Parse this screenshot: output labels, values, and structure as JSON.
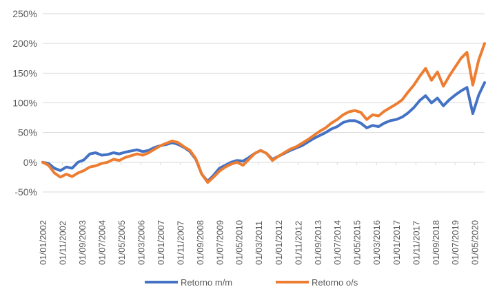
{
  "chart_data": {
    "type": "line",
    "title": "",
    "xlabel": "",
    "ylabel": "",
    "ylim": [
      -50,
      250
    ],
    "y_ticks": [
      "-50%",
      "0%",
      "50%",
      "100%",
      "150%",
      "200%",
      "250%"
    ],
    "y_tick_values": [
      -50,
      0,
      50,
      100,
      150,
      200,
      250
    ],
    "y_unit": "%",
    "x_tick_labels": [
      "01/01/2002",
      "01/11/2002",
      "01/09/2003",
      "01/07/2004",
      "01/05/2005",
      "01/03/2006",
      "01/01/2007",
      "01/11/2007",
      "01/09/2008",
      "01/07/2009",
      "01/05/2010",
      "01/03/2011",
      "01/01/2012",
      "01/11/2012",
      "01/09/2013",
      "01/07/2014",
      "01/05/2015",
      "01/03/2016",
      "01/01/2017",
      "01/11/2017",
      "01/09/2018",
      "01/07/2019",
      "01/05/2020"
    ],
    "x_range": [
      "01/01/2002",
      "01/10/2020"
    ],
    "grid": "horizontal",
    "legend_position": "bottom",
    "series": [
      {
        "name": "Retorno m/m",
        "color": "#4472C4",
        "points": [
          [
            "01/01/2002",
            0
          ],
          [
            "01/04/2002",
            -2
          ],
          [
            "01/07/2002",
            -10
          ],
          [
            "01/10/2002",
            -14
          ],
          [
            "01/01/2003",
            -8
          ],
          [
            "01/04/2003",
            -10
          ],
          [
            "01/07/2003",
            0
          ],
          [
            "01/10/2003",
            4
          ],
          [
            "01/01/2004",
            14
          ],
          [
            "01/04/2004",
            16
          ],
          [
            "01/07/2004",
            12
          ],
          [
            "01/10/2004",
            13
          ],
          [
            "01/01/2005",
            16
          ],
          [
            "01/04/2005",
            14
          ],
          [
            "01/07/2005",
            17
          ],
          [
            "01/10/2005",
            19
          ],
          [
            "01/01/2006",
            21
          ],
          [
            "01/04/2006",
            18
          ],
          [
            "01/07/2006",
            20
          ],
          [
            "01/10/2006",
            25
          ],
          [
            "01/01/2007",
            28
          ],
          [
            "01/04/2007",
            30
          ],
          [
            "01/07/2007",
            33
          ],
          [
            "01/10/2007",
            30
          ],
          [
            "01/01/2008",
            25
          ],
          [
            "01/04/2008",
            18
          ],
          [
            "01/07/2008",
            5
          ],
          [
            "01/10/2008",
            -20
          ],
          [
            "01/01/2009",
            -32
          ],
          [
            "01/04/2009",
            -22
          ],
          [
            "01/07/2009",
            -10
          ],
          [
            "01/10/2009",
            -5
          ],
          [
            "01/01/2010",
            0
          ],
          [
            "01/04/2010",
            3
          ],
          [
            "01/07/2010",
            2
          ],
          [
            "01/10/2010",
            8
          ],
          [
            "01/01/2011",
            15
          ],
          [
            "01/04/2011",
            20
          ],
          [
            "01/07/2011",
            15
          ],
          [
            "01/10/2011",
            5
          ],
          [
            "01/01/2012",
            10
          ],
          [
            "01/04/2012",
            15
          ],
          [
            "01/07/2012",
            20
          ],
          [
            "01/10/2012",
            24
          ],
          [
            "01/01/2013",
            28
          ],
          [
            "01/04/2013",
            34
          ],
          [
            "01/07/2013",
            40
          ],
          [
            "01/10/2013",
            45
          ],
          [
            "01/01/2014",
            50
          ],
          [
            "01/04/2014",
            56
          ],
          [
            "01/07/2014",
            60
          ],
          [
            "01/10/2014",
            67
          ],
          [
            "01/01/2015",
            70
          ],
          [
            "01/04/2015",
            70
          ],
          [
            "01/07/2015",
            66
          ],
          [
            "01/10/2015",
            58
          ],
          [
            "01/01/2016",
            62
          ],
          [
            "01/04/2016",
            60
          ],
          [
            "01/07/2016",
            66
          ],
          [
            "01/10/2016",
            70
          ],
          [
            "01/01/2017",
            72
          ],
          [
            "01/04/2017",
            76
          ],
          [
            "01/07/2017",
            83
          ],
          [
            "01/10/2017",
            92
          ],
          [
            "01/01/2018",
            104
          ],
          [
            "01/04/2018",
            112
          ],
          [
            "01/07/2018",
            100
          ],
          [
            "01/10/2018",
            108
          ],
          [
            "01/01/2019",
            95
          ],
          [
            "01/04/2019",
            105
          ],
          [
            "01/07/2019",
            113
          ],
          [
            "01/10/2019",
            120
          ],
          [
            "01/01/2020",
            126
          ],
          [
            "01/04/2020",
            82
          ],
          [
            "01/07/2020",
            113
          ],
          [
            "01/10/2020",
            134
          ]
        ]
      },
      {
        "name": "Retorno o/s",
        "color": "#ED7D31",
        "points": [
          [
            "01/01/2002",
            0
          ],
          [
            "01/04/2002",
            -5
          ],
          [
            "01/07/2002",
            -18
          ],
          [
            "01/10/2002",
            -25
          ],
          [
            "01/01/2003",
            -20
          ],
          [
            "01/04/2003",
            -24
          ],
          [
            "01/07/2003",
            -18
          ],
          [
            "01/10/2003",
            -14
          ],
          [
            "01/01/2004",
            -8
          ],
          [
            "01/04/2004",
            -6
          ],
          [
            "01/07/2004",
            -2
          ],
          [
            "01/10/2004",
            0
          ],
          [
            "01/01/2005",
            5
          ],
          [
            "01/04/2005",
            3
          ],
          [
            "01/07/2005",
            8
          ],
          [
            "01/10/2005",
            11
          ],
          [
            "01/01/2006",
            14
          ],
          [
            "01/04/2006",
            12
          ],
          [
            "01/07/2006",
            16
          ],
          [
            "01/10/2006",
            22
          ],
          [
            "01/01/2007",
            28
          ],
          [
            "01/04/2007",
            32
          ],
          [
            "01/07/2007",
            36
          ],
          [
            "01/10/2007",
            33
          ],
          [
            "01/01/2008",
            26
          ],
          [
            "01/04/2008",
            20
          ],
          [
            "01/07/2008",
            6
          ],
          [
            "01/10/2008",
            -20
          ],
          [
            "01/01/2009",
            -34
          ],
          [
            "01/04/2009",
            -25
          ],
          [
            "01/07/2009",
            -15
          ],
          [
            "01/10/2009",
            -8
          ],
          [
            "01/01/2010",
            -3
          ],
          [
            "01/04/2010",
            0
          ],
          [
            "01/07/2010",
            -5
          ],
          [
            "01/10/2010",
            5
          ],
          [
            "01/01/2011",
            15
          ],
          [
            "01/04/2011",
            20
          ],
          [
            "01/07/2011",
            15
          ],
          [
            "01/10/2011",
            3
          ],
          [
            "01/01/2012",
            10
          ],
          [
            "01/04/2012",
            16
          ],
          [
            "01/07/2012",
            22
          ],
          [
            "01/10/2012",
            26
          ],
          [
            "01/01/2013",
            32
          ],
          [
            "01/04/2013",
            38
          ],
          [
            "01/07/2013",
            45
          ],
          [
            "01/10/2013",
            52
          ],
          [
            "01/01/2014",
            58
          ],
          [
            "01/04/2014",
            66
          ],
          [
            "01/07/2014",
            72
          ],
          [
            "01/10/2014",
            80
          ],
          [
            "01/01/2015",
            85
          ],
          [
            "01/04/2015",
            87
          ],
          [
            "01/07/2015",
            84
          ],
          [
            "01/10/2015",
            72
          ],
          [
            "01/01/2016",
            80
          ],
          [
            "01/04/2016",
            78
          ],
          [
            "01/07/2016",
            86
          ],
          [
            "01/10/2016",
            92
          ],
          [
            "01/01/2017",
            98
          ],
          [
            "01/04/2017",
            105
          ],
          [
            "01/07/2017",
            118
          ],
          [
            "01/10/2017",
            130
          ],
          [
            "01/01/2018",
            145
          ],
          [
            "01/04/2018",
            158
          ],
          [
            "01/07/2018",
            138
          ],
          [
            "01/10/2018",
            152
          ],
          [
            "01/01/2019",
            128
          ],
          [
            "01/04/2019",
            145
          ],
          [
            "01/07/2019",
            160
          ],
          [
            "01/10/2019",
            175
          ],
          [
            "01/01/2020",
            185
          ],
          [
            "01/04/2020",
            130
          ],
          [
            "01/07/2020",
            172
          ],
          [
            "01/10/2020",
            200
          ]
        ]
      }
    ]
  }
}
